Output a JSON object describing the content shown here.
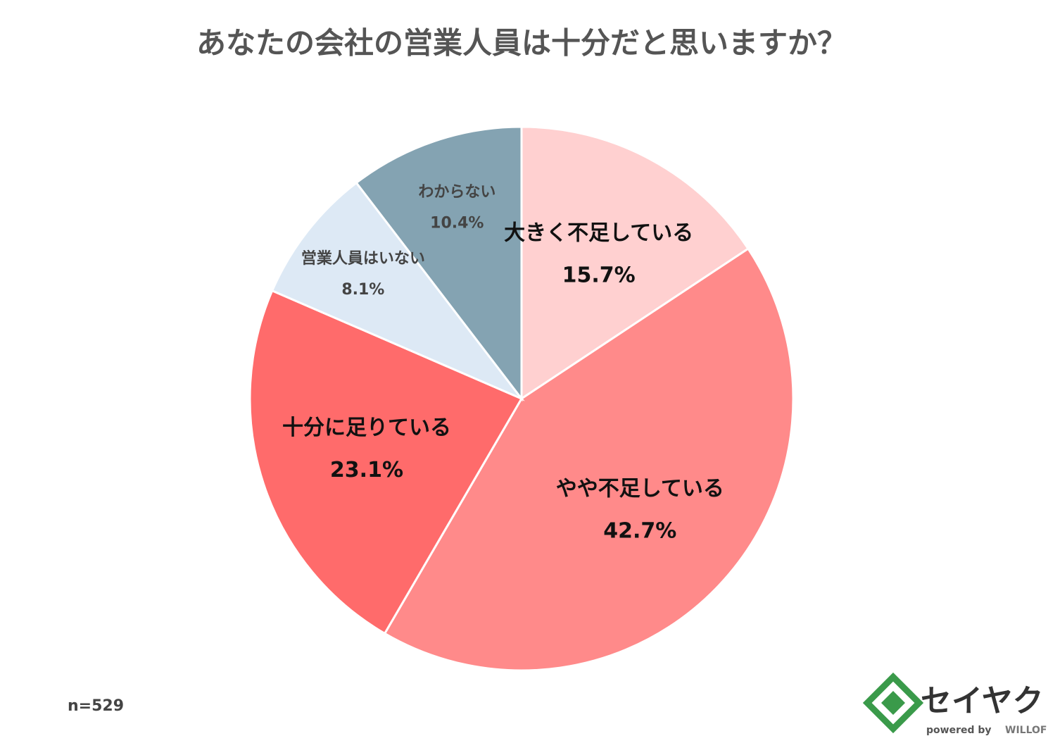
{
  "chart_data": {
    "type": "pie",
    "title": "あなたの会社の営業人員は十分だと思いますか？",
    "categories": [
      "大きく不足している",
      "やや不足している",
      "十分に足りている",
      "営業人員はいない",
      "わからない"
    ],
    "values": [
      15.7,
      42.7,
      23.1,
      8.1,
      10.4
    ],
    "value_labels": [
      "15.7%",
      "42.7%",
      "23.1%",
      "8.1%",
      "10.4%"
    ],
    "colors": [
      "#ffd0d0",
      "#ff8a8a",
      "#ff6b6b",
      "#dde9f5",
      "#84a3b2"
    ],
    "note": "n=529"
  },
  "logo": {
    "name": "セイヤク",
    "tagline": "powered by",
    "brand": "WILLOF"
  }
}
